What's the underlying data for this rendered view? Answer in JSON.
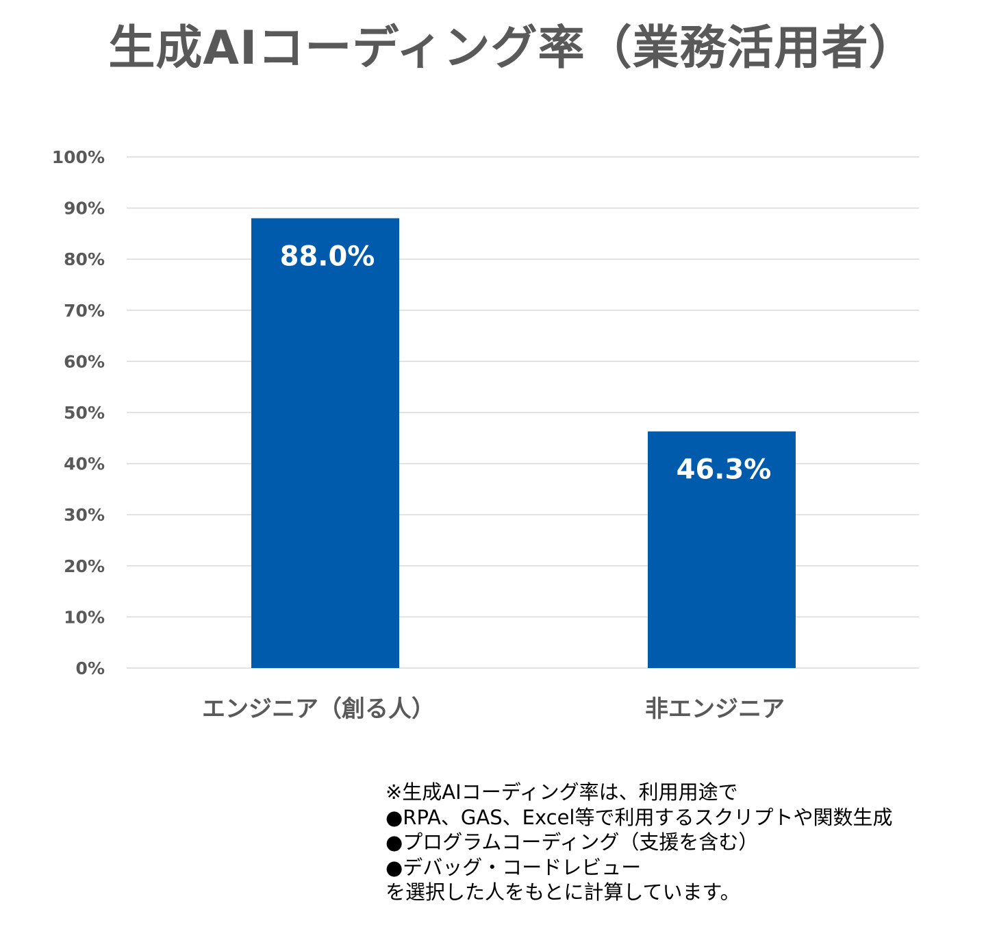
{
  "chart_data": {
    "type": "bar",
    "title": "生成AIコーディング率（業務活用者）",
    "categories": [
      "エンジニア（創る人）",
      "非エンジニア"
    ],
    "values": [
      88.0,
      46.3
    ],
    "data_labels": [
      "88.0%",
      "46.3%"
    ],
    "ylim": [
      0,
      100
    ],
    "yticks": [
      "0%",
      "10%",
      "20%",
      "30%",
      "40%",
      "50%",
      "60%",
      "70%",
      "80%",
      "90%",
      "100%"
    ],
    "grid": true,
    "bar_color": "#005BAC",
    "xlabel": "",
    "ylabel": ""
  },
  "footnote": {
    "lines": [
      "※生成AIコーディング率は、利用用途で",
      "●RPA、GAS、Excel等で利用するスクリプトや関数生成",
      "●プログラムコーディング（支援を含む）",
      "●デバッグ・コードレビュー",
      "を選択した人をもとに計算しています。"
    ]
  }
}
